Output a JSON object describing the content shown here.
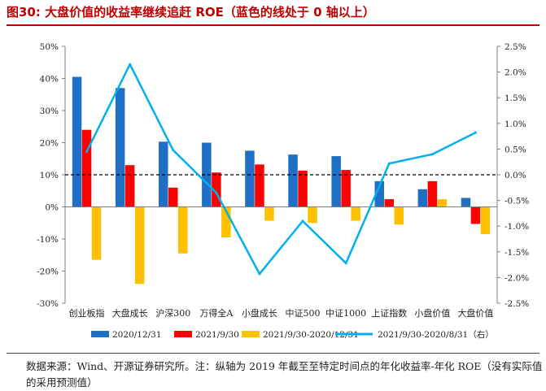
{
  "title": "图30:  大盘价值的收益率继续追赶 ROE（蓝色的线处于 0 轴以上）",
  "source": "数据来源：Wind、开源证券研究所。注：纵轴为 2019 年截至至特定时间点的年化收益率-年化 ROE（没有实际值的采用预测值）",
  "chart_data": {
    "type": "bar",
    "categories": [
      "创业板指",
      "大盘成长",
      "沪深300",
      "万得全A",
      "小盘成长",
      "中证500",
      "中证1000",
      "上证指数",
      "小盘价值",
      "大盘价值"
    ],
    "series": [
      {
        "name": "2020/12/31",
        "color": "#1f6fc5",
        "axis": "left",
        "values": [
          40.5,
          37.0,
          20.3,
          20.0,
          17.5,
          16.3,
          15.8,
          8.0,
          5.5,
          2.8
        ]
      },
      {
        "name": "2021/9/30",
        "color": "#ff0000",
        "axis": "left",
        "values": [
          24.0,
          13.0,
          6.0,
          10.7,
          13.2,
          11.3,
          11.5,
          2.4,
          8.0,
          -5.3
        ]
      },
      {
        "name": "2021/9/30-2020/12/31",
        "color": "#ffc000",
        "axis": "left",
        "values": [
          -16.5,
          -24.0,
          -14.5,
          -9.5,
          -4.3,
          -5.0,
          -4.3,
          -5.5,
          2.4,
          -8.5
        ]
      },
      {
        "name": "2021/9/30-2020/8/31（右）",
        "color": "#00b0f0",
        "axis": "right",
        "type": "line",
        "values": [
          0.45,
          2.15,
          0.48,
          -0.35,
          -1.93,
          -0.9,
          -1.72,
          0.22,
          0.4,
          0.82
        ]
      }
    ],
    "ylim_left": [
      -30,
      50
    ],
    "ytick_step_left": 10,
    "ytick_labels_left": [
      "-30%",
      "-20%",
      "-10%",
      "0%",
      "10%",
      "20%",
      "30%",
      "40%",
      "50%"
    ],
    "ylim_right": [
      -2.5,
      2.5
    ],
    "ytick_step_right": 0.5,
    "ytick_labels_right": [
      "-2.5%",
      "-2.0%",
      "-1.5%",
      "-1.0%",
      "-0.5%",
      "0.0%",
      "0.5%",
      "1.0%",
      "1.5%",
      "2.0%",
      "2.5%"
    ],
    "zero_reference_line": "dashed black line at right-axis 0.0%",
    "grid": false,
    "legend": "bottom"
  }
}
